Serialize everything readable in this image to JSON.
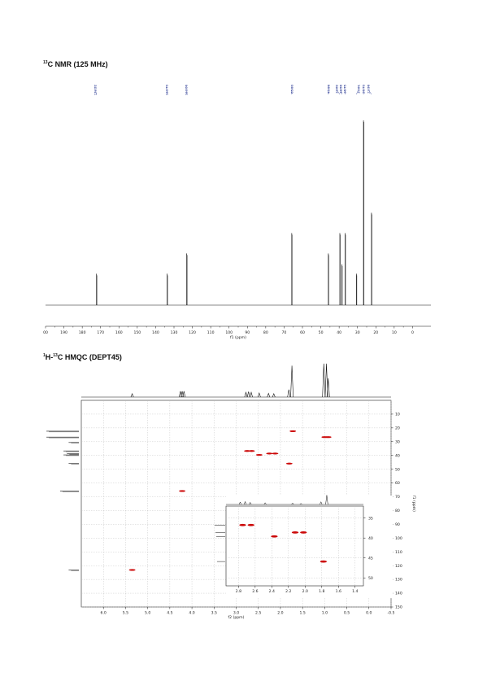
{
  "c13": {
    "title_sup": "13",
    "title_rest": "C NMR (125 MHz)"
  },
  "hmqc": {
    "title_sup1": "1",
    "title_mid": "H-",
    "title_sup2": "13",
    "title_rest": "C HMQC (DEPT45)"
  },
  "chart_data": [
    {
      "type": "line",
      "xlabel": "f1 (ppm)",
      "xlim": [
        200,
        -10
      ],
      "x_ticks": [
        "00",
        "190",
        "180",
        "170",
        "160",
        "150",
        "140",
        "130",
        "120",
        "110",
        "100",
        "90",
        "80",
        "70",
        "60",
        "50",
        "40",
        "30",
        "20",
        "10",
        "0"
      ],
      "peak_labels": [
        "172.22",
        "133.73",
        "123.06",
        "65.83",
        "45.88",
        "39.62",
        "38.56",
        "36.75",
        "30.61",
        "26.73",
        "22.38"
      ],
      "peaks": [
        {
          "ppm": 172.22,
          "intensity": 0.17
        },
        {
          "ppm": 133.73,
          "intensity": 0.17
        },
        {
          "ppm": 123.06,
          "intensity": 0.28
        },
        {
          "ppm": 65.83,
          "intensity": 0.39
        },
        {
          "ppm": 45.88,
          "intensity": 0.28
        },
        {
          "ppm": 39.62,
          "intensity": 0.39
        },
        {
          "ppm": 38.56,
          "intensity": 0.22
        },
        {
          "ppm": 36.75,
          "intensity": 0.39
        },
        {
          "ppm": 30.61,
          "intensity": 0.17
        },
        {
          "ppm": 26.73,
          "intensity": 1.0
        },
        {
          "ppm": 22.38,
          "intensity": 0.5
        }
      ]
    },
    {
      "type": "heatmap",
      "xlabel": "f2 (ppm)",
      "ylabel": "f1 (ppm)",
      "xlim": [
        6.5,
        -0.5
      ],
      "ylim": [
        0,
        150
      ],
      "x_ticks": [
        "6.0",
        "5.5",
        "5.0",
        "4.5",
        "4.0",
        "3.5",
        "3.0",
        "2.5",
        "2.0",
        "1.5",
        "1.0",
        "0.5",
        "0.0",
        "-0.5"
      ],
      "y_ticks": [
        "10",
        "20",
        "30",
        "40",
        "50",
        "60",
        "70",
        "80",
        "90",
        "100",
        "110",
        "120",
        "130",
        "140",
        "150"
      ],
      "cross_peaks": [
        {
          "f2": 5.35,
          "f1": 123.1
        },
        {
          "f2": 4.22,
          "f1": 65.8
        },
        {
          "f2": 2.75,
          "f1": 36.75
        },
        {
          "f2": 2.65,
          "f1": 36.75
        },
        {
          "f2": 2.48,
          "f1": 39.6
        },
        {
          "f2": 2.25,
          "f1": 38.6
        },
        {
          "f2": 2.12,
          "f1": 38.6
        },
        {
          "f2": 1.8,
          "f1": 45.9
        },
        {
          "f2": 1.72,
          "f1": 22.4
        },
        {
          "f2": 1.0,
          "f1": 26.7
        },
        {
          "f2": 0.92,
          "f1": 26.7
        }
      ],
      "h1_peaks": [
        {
          "ppm": 5.35,
          "h": 0.1
        },
        {
          "ppm": 4.26,
          "h": 0.17
        },
        {
          "ppm": 4.22,
          "h": 0.17
        },
        {
          "ppm": 4.18,
          "h": 0.17
        },
        {
          "ppm": 2.78,
          "h": 0.14
        },
        {
          "ppm": 2.72,
          "h": 0.16
        },
        {
          "ppm": 2.66,
          "h": 0.14
        },
        {
          "ppm": 2.48,
          "h": 0.12
        },
        {
          "ppm": 2.27,
          "h": 0.11
        },
        {
          "ppm": 2.15,
          "h": 0.1
        },
        {
          "ppm": 1.81,
          "h": 0.22
        },
        {
          "ppm": 1.74,
          "h": 0.92
        },
        {
          "ppm": 1.02,
          "h": 0.98
        },
        {
          "ppm": 0.96,
          "h": 0.98
        },
        {
          "ppm": 0.92,
          "h": 0.55
        }
      ],
      "c13_projection": [
        {
          "ppm": 22.4,
          "h": 0.95
        },
        {
          "ppm": 26.7,
          "h": 0.95
        },
        {
          "ppm": 30.6,
          "h": 0.3
        },
        {
          "ppm": 36.75,
          "h": 0.45
        },
        {
          "ppm": 38.6,
          "h": 0.35
        },
        {
          "ppm": 39.6,
          "h": 0.45
        },
        {
          "ppm": 45.9,
          "h": 0.3
        },
        {
          "ppm": 65.8,
          "h": 0.55
        },
        {
          "ppm": 123.1,
          "h": 0.3
        }
      ],
      "inset": {
        "xlim": [
          2.95,
          1.3
        ],
        "ylim": [
          32,
          52
        ],
        "x_ticks": [
          "2.8",
          "2.6",
          "2.4",
          "2.2",
          "2.0",
          "1.8",
          "1.6",
          "1.4"
        ],
        "y_ticks": [
          "35",
          "40",
          "45",
          "50"
        ],
        "cross_peaks": [
          {
            "f2": 2.75,
            "f1": 36.75
          },
          {
            "f2": 2.65,
            "f1": 36.75
          },
          {
            "f2": 2.37,
            "f1": 39.6
          },
          {
            "f2": 2.12,
            "f1": 38.6
          },
          {
            "f2": 2.02,
            "f1": 38.6
          },
          {
            "f2": 1.78,
            "f1": 45.9
          }
        ],
        "h1_peaks": [
          {
            "ppm": 2.78,
            "h": 0.25
          },
          {
            "ppm": 2.72,
            "h": 0.3
          },
          {
            "ppm": 2.66,
            "h": 0.22
          },
          {
            "ppm": 2.48,
            "h": 0.18
          },
          {
            "ppm": 2.15,
            "h": 0.15
          },
          {
            "ppm": 2.05,
            "h": 0.12
          },
          {
            "ppm": 1.81,
            "h": 0.28
          },
          {
            "ppm": 1.74,
            "h": 0.95
          }
        ]
      }
    }
  ]
}
